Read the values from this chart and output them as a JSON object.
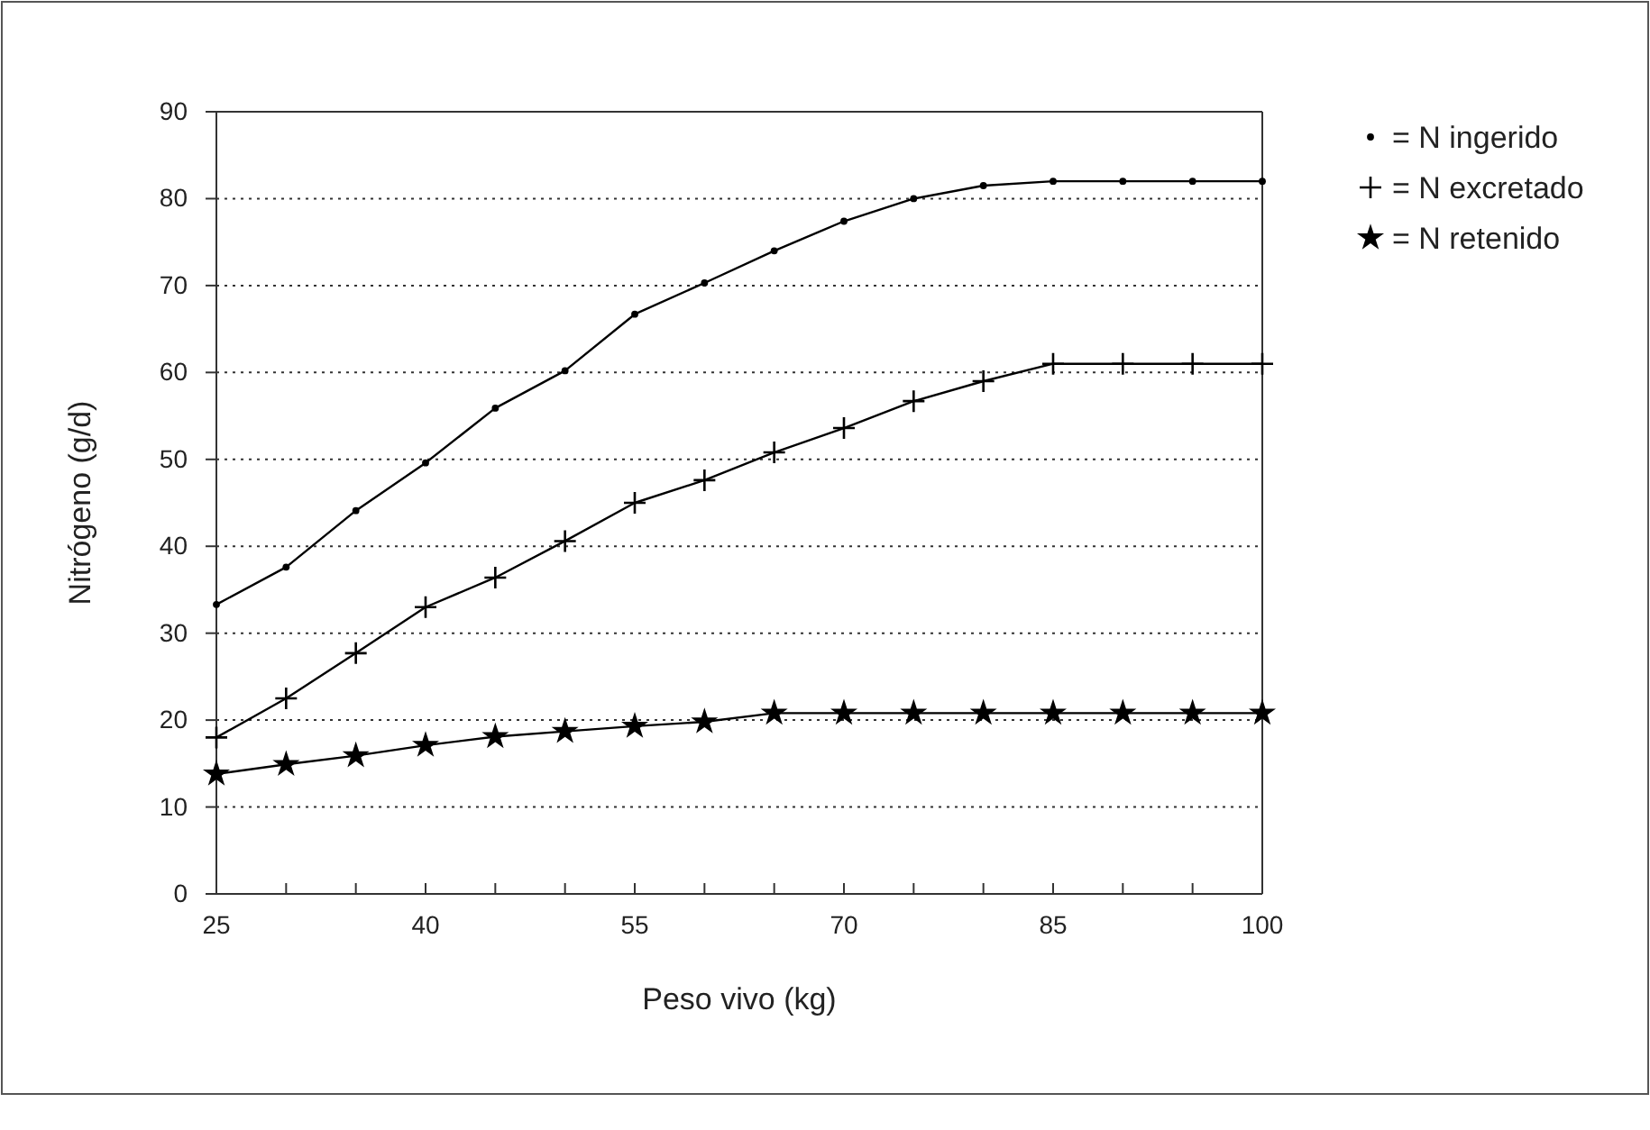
{
  "chart_data": {
    "type": "line",
    "xlabel": "Peso vivo (kg)",
    "ylabel": "Nitrógeno (g/d)",
    "x": [
      25,
      30,
      35,
      40,
      45,
      50,
      55,
      60,
      65,
      70,
      75,
      80,
      85,
      90,
      95,
      100
    ],
    "xlim": [
      25,
      100
    ],
    "xticks": [
      25,
      {
        "value": 30,
        "label": null
      },
      {
        "value": 35,
        "label": null
      },
      40,
      {
        "value": 45,
        "label": null
      },
      {
        "value": 50,
        "label": null
      },
      55,
      {
        "value": 60,
        "label": null
      },
      {
        "value": 65,
        "label": null
      },
      70,
      {
        "value": 75,
        "label": null
      },
      {
        "value": 80,
        "label": null
      },
      85,
      {
        "value": 90,
        "label": null
      },
      {
        "value": 95,
        "label": null
      },
      100
    ],
    "ylim": [
      0,
      90
    ],
    "yticks": [
      0,
      10,
      20,
      30,
      40,
      50,
      60,
      70,
      80,
      90
    ],
    "grid": "y",
    "legend": "right",
    "series": [
      {
        "name": "= N ingerido",
        "color": "#000000",
        "marker": "circle",
        "values": [
          33.3,
          37.6,
          44.1,
          49.6,
          55.9,
          60.2,
          66.7,
          70.3,
          74,
          77.4,
          80,
          81.5,
          82,
          82,
          82,
          82
        ]
      },
      {
        "name": "= N excretado",
        "color": "#000000",
        "marker": "cross",
        "values": [
          18,
          22.5,
          27.7,
          33,
          36.4,
          40.6,
          45,
          47.6,
          50.8,
          53.6,
          56.7,
          59,
          61,
          61,
          61,
          61
        ]
      },
      {
        "name": "= N retenido",
        "color": "#000000",
        "marker": "star",
        "values": [
          13.8,
          14.9,
          15.9,
          17.1,
          18.1,
          18.7,
          19.3,
          19.8,
          20.8,
          20.8,
          20.8,
          20.8,
          20.8,
          20.8,
          20.8,
          20.8
        ]
      }
    ]
  }
}
